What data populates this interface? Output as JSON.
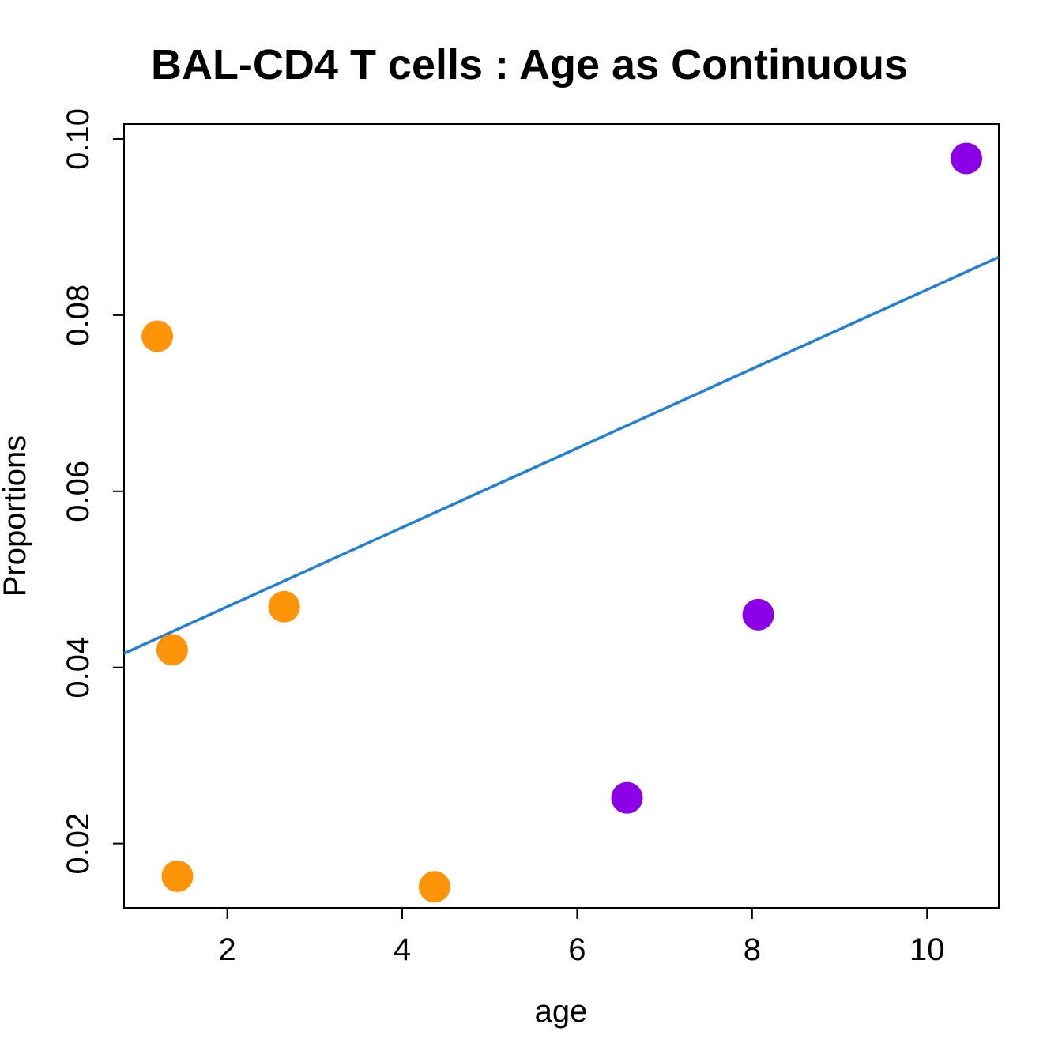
{
  "chart_data": {
    "type": "scatter",
    "title": "BAL-CD4 T cells : Age as Continuous",
    "xlabel": "age",
    "ylabel": "Proportions",
    "xlim": [
      0.82,
      10.82
    ],
    "ylim": [
      0.0127,
      0.1017
    ],
    "x_ticks": [
      2,
      4,
      6,
      8,
      10
    ],
    "x_tick_labels": [
      "2",
      "4",
      "6",
      "8",
      "10"
    ],
    "y_ticks": [
      0.02,
      0.04,
      0.06,
      0.08,
      0.1
    ],
    "y_tick_labels": [
      "0.02",
      "0.04",
      "0.06",
      "0.08",
      "0.10"
    ],
    "grid": false,
    "legend": "none",
    "series": [
      {
        "color": "#FF9408",
        "points": [
          {
            "x": 1.2,
            "y": 0.0776
          },
          {
            "x": 1.37,
            "y": 0.042
          },
          {
            "x": 1.43,
            "y": 0.0163
          },
          {
            "x": 2.65,
            "y": 0.0469
          },
          {
            "x": 4.37,
            "y": 0.0151
          }
        ]
      },
      {
        "color": "#8B00E6",
        "points": [
          {
            "x": 6.57,
            "y": 0.0252
          },
          {
            "x": 8.07,
            "y": 0.046
          },
          {
            "x": 10.45,
            "y": 0.0978
          }
        ]
      }
    ],
    "fit_line": {
      "color": "#1F7FD9",
      "intercept": 0.0379,
      "slope": 0.0045
    }
  }
}
